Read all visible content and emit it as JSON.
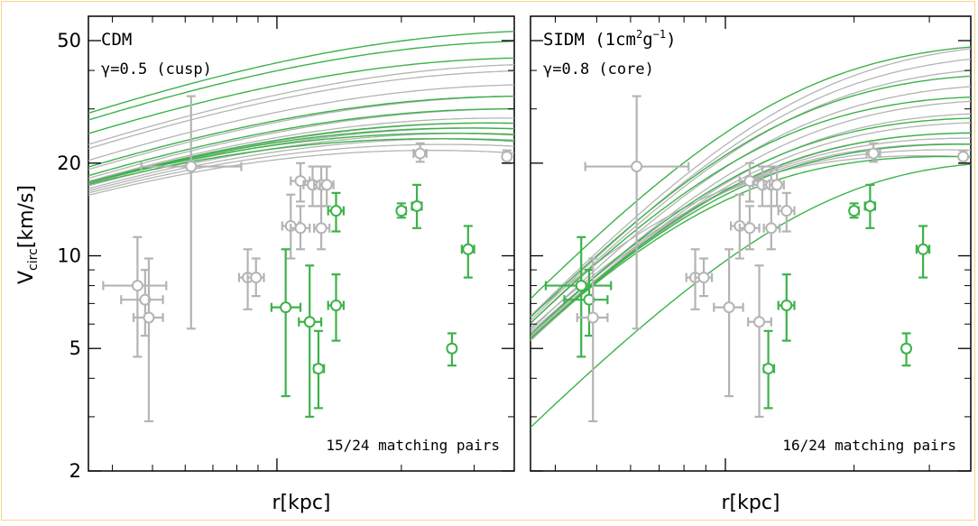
{
  "colors": {
    "gray": "#b4b4b4",
    "green": "#3cb24a",
    "frame": "#f5d58a"
  },
  "axes": {
    "xlabel": "r[kpc]",
    "ylabel": "V_circ[km/s]",
    "ytick_labels": [
      "2",
      "5",
      "10",
      "20",
      "50"
    ],
    "yticks": [
      2,
      5,
      10,
      20,
      50
    ],
    "ylim": [
      2,
      60
    ],
    "xlim": [
      0.35,
      3.75
    ],
    "xscale": "log",
    "yscale": "log"
  },
  "chart_data": [
    {
      "type": "scatter",
      "title": "CDM",
      "subtitle": "γ=0.5 (cusp)",
      "annotation": "15/24 matching pairs",
      "points": [
        {
          "x": 0.46,
          "y": 8.0,
          "xerr": [
            0.38,
            0.54
          ],
          "yerr": [
            4.7,
            11.5
          ],
          "group": "gray"
        },
        {
          "x": 0.48,
          "y": 7.2,
          "xerr": [
            0.42,
            0.53
          ],
          "yerr": [
            5.5,
            9.0
          ],
          "group": "gray"
        },
        {
          "x": 0.49,
          "y": 6.3,
          "xerr": [
            0.45,
            0.53
          ],
          "yerr": [
            2.9,
            9.8
          ],
          "group": "gray"
        },
        {
          "x": 0.62,
          "y": 19.5,
          "xerr": [
            0.47,
            0.82
          ],
          "yerr": [
            5.8,
            33.0
          ],
          "group": "gray"
        },
        {
          "x": 0.85,
          "y": 8.5,
          "xerr": [
            0.81,
            0.89
          ],
          "yerr": [
            6.7,
            10.5
          ],
          "group": "gray"
        },
        {
          "x": 0.89,
          "y": 8.5,
          "xerr": [
            0.85,
            0.93
          ],
          "yerr": [
            7.4,
            9.8
          ],
          "group": "gray"
        },
        {
          "x": 1.08,
          "y": 12.5,
          "xerr": [
            1.03,
            1.13
          ],
          "yerr": [
            9.8,
            15.8
          ],
          "group": "gray"
        },
        {
          "x": 1.14,
          "y": 17.5,
          "xerr": [
            1.08,
            1.2
          ],
          "yerr": [
            15.0,
            20.0
          ],
          "group": "gray"
        },
        {
          "x": 1.14,
          "y": 12.3,
          "xerr": [
            1.08,
            1.2
          ],
          "yerr": [
            10.5,
            14.5
          ],
          "group": "gray"
        },
        {
          "x": 1.22,
          "y": 17.0,
          "xerr": [
            1.16,
            1.28
          ],
          "yerr": [
            14.5,
            19.5
          ],
          "group": "gray"
        },
        {
          "x": 1.28,
          "y": 17.0,
          "xerr": [
            1.23,
            1.34
          ],
          "yerr": [
            14.5,
            19.5
          ],
          "group": "gray"
        },
        {
          "x": 1.28,
          "y": 12.3,
          "xerr": [
            1.23,
            1.34
          ],
          "yerr": [
            10.5,
            14.5
          ],
          "group": "gray"
        },
        {
          "x": 1.32,
          "y": 17.0,
          "xerr": [
            1.27,
            1.37
          ],
          "yerr": [
            14.5,
            19.5
          ],
          "group": "gray"
        },
        {
          "x": 1.39,
          "y": 14.0,
          "xerr": [
            1.33,
            1.45
          ],
          "yerr": [
            12.0,
            16.0
          ],
          "group": "green"
        },
        {
          "x": 1.05,
          "y": 6.8,
          "xerr": [
            0.97,
            1.14
          ],
          "yerr": [
            3.5,
            10.5
          ],
          "group": "green"
        },
        {
          "x": 1.2,
          "y": 6.1,
          "xerr": [
            1.13,
            1.28
          ],
          "yerr": [
            3.0,
            9.3
          ],
          "group": "green"
        },
        {
          "x": 1.26,
          "y": 4.3,
          "xerr": [
            1.23,
            1.3
          ],
          "yerr": [
            3.2,
            5.7
          ],
          "group": "green"
        },
        {
          "x": 1.39,
          "y": 6.9,
          "xerr": [
            1.33,
            1.45
          ],
          "yerr": [
            5.3,
            8.7
          ],
          "group": "green"
        },
        {
          "x": 2.0,
          "y": 14.0,
          "xerr": [
            1.96,
            2.05
          ],
          "yerr": [
            13.3,
            14.8
          ],
          "group": "green"
        },
        {
          "x": 2.18,
          "y": 14.5,
          "xerr": [
            2.12,
            2.24
          ],
          "yerr": [
            12.3,
            17.0
          ],
          "group": "green"
        },
        {
          "x": 2.22,
          "y": 21.5,
          "xerr": [
            2.14,
            2.3
          ],
          "yerr": [
            20.2,
            23.2
          ],
          "group": "gray"
        },
        {
          "x": 2.65,
          "y": 5.0,
          "xerr": [
            2.6,
            2.7
          ],
          "yerr": [
            4.4,
            5.6
          ],
          "group": "green"
        },
        {
          "x": 2.9,
          "y": 10.5,
          "xerr": [
            2.8,
            3.0
          ],
          "yerr": [
            8.5,
            12.5
          ],
          "group": "green"
        },
        {
          "x": 3.6,
          "y": 21.0,
          "xerr": [
            3.55,
            3.65
          ],
          "yerr": [
            20.0,
            22.0
          ],
          "group": "gray"
        }
      ],
      "curves": [
        {
          "g": "gray",
          "vmax": 22,
          "rmax": 2.35
        },
        {
          "g": "gray",
          "vmax": 23,
          "rmax": 2.55
        },
        {
          "g": "gray",
          "vmax": 24,
          "rmax": 2.75
        },
        {
          "g": "gray",
          "vmax": 25,
          "rmax": 2.95
        },
        {
          "g": "gray",
          "vmax": 26,
          "rmax": 3.1
        },
        {
          "g": "gray",
          "vmax": 27,
          "rmax": 3.3
        },
        {
          "g": "gray",
          "vmax": 28,
          "rmax": 3.45
        },
        {
          "g": "gray",
          "vmax": 30,
          "rmax": 3.9
        },
        {
          "g": "gray",
          "vmax": 33,
          "rmax": 4.2
        },
        {
          "g": "gray",
          "vmax": 36,
          "rmax": 4.4
        },
        {
          "g": "gray",
          "vmax": 40,
          "rmax": 4.6
        },
        {
          "g": "gray",
          "vmax": 42,
          "rmax": 4.8
        },
        {
          "g": "green",
          "vmax": 24,
          "rmax": 2.4
        },
        {
          "g": "green",
          "vmax": 25,
          "rmax": 2.6
        },
        {
          "g": "green",
          "vmax": 26,
          "rmax": 2.9
        },
        {
          "g": "green",
          "vmax": 27,
          "rmax": 3.2
        },
        {
          "g": "green",
          "vmax": 30,
          "rmax": 3.7
        },
        {
          "g": "green",
          "vmax": 33,
          "rmax": 4.0
        },
        {
          "g": "green",
          "vmax": 44,
          "rmax": 4.4
        },
        {
          "g": "green",
          "vmax": 50,
          "rmax": 4.7
        },
        {
          "g": "green",
          "vmax": 54,
          "rmax": 5.0
        }
      ]
    },
    {
      "type": "scatter",
      "title": "SIDM (1cm²g⁻¹)",
      "subtitle": "γ=0.8 (core)",
      "annotation": "16/24 matching pairs",
      "points": [
        {
          "x": 0.46,
          "y": 8.0,
          "xerr": [
            0.38,
            0.54
          ],
          "yerr": [
            4.7,
            11.5
          ],
          "group": "green"
        },
        {
          "x": 0.48,
          "y": 7.2,
          "xerr": [
            0.42,
            0.53
          ],
          "yerr": [
            5.5,
            9.0
          ],
          "group": "green"
        },
        {
          "x": 0.49,
          "y": 6.3,
          "xerr": [
            0.45,
            0.53
          ],
          "yerr": [
            2.9,
            9.8
          ],
          "group": "gray"
        },
        {
          "x": 0.62,
          "y": 19.5,
          "xerr": [
            0.47,
            0.82
          ],
          "yerr": [
            5.8,
            33.0
          ],
          "group": "gray"
        },
        {
          "x": 0.85,
          "y": 8.5,
          "xerr": [
            0.81,
            0.89
          ],
          "yerr": [
            6.7,
            10.5
          ],
          "group": "gray"
        },
        {
          "x": 0.89,
          "y": 8.5,
          "xerr": [
            0.85,
            0.93
          ],
          "yerr": [
            7.4,
            9.8
          ],
          "group": "gray"
        },
        {
          "x": 1.02,
          "y": 6.8,
          "xerr": [
            0.94,
            1.1
          ],
          "yerr": [
            3.5,
            10.5
          ],
          "group": "gray"
        },
        {
          "x": 1.08,
          "y": 12.5,
          "xerr": [
            1.03,
            1.13
          ],
          "yerr": [
            9.8,
            15.8
          ],
          "group": "gray"
        },
        {
          "x": 1.14,
          "y": 17.5,
          "xerr": [
            1.08,
            1.2
          ],
          "yerr": [
            15.0,
            20.0
          ],
          "group": "gray"
        },
        {
          "x": 1.14,
          "y": 12.3,
          "xerr": [
            1.08,
            1.2
          ],
          "yerr": [
            10.5,
            14.5
          ],
          "group": "gray"
        },
        {
          "x": 1.2,
          "y": 6.1,
          "xerr": [
            1.13,
            1.28
          ],
          "yerr": [
            3.0,
            9.3
          ],
          "group": "gray"
        },
        {
          "x": 1.22,
          "y": 17.0,
          "xerr": [
            1.16,
            1.28
          ],
          "yerr": [
            14.5,
            19.5
          ],
          "group": "gray"
        },
        {
          "x": 1.28,
          "y": 17.0,
          "xerr": [
            1.23,
            1.34
          ],
          "yerr": [
            14.5,
            19.5
          ],
          "group": "gray"
        },
        {
          "x": 1.28,
          "y": 12.3,
          "xerr": [
            1.23,
            1.34
          ],
          "yerr": [
            10.5,
            14.5
          ],
          "group": "gray"
        },
        {
          "x": 1.32,
          "y": 17.0,
          "xerr": [
            1.27,
            1.37
          ],
          "yerr": [
            14.5,
            19.5
          ],
          "group": "gray"
        },
        {
          "x": 1.39,
          "y": 14.0,
          "xerr": [
            1.33,
            1.45
          ],
          "yerr": [
            12.0,
            16.0
          ],
          "group": "gray"
        },
        {
          "x": 1.26,
          "y": 4.3,
          "xerr": [
            1.23,
            1.3
          ],
          "yerr": [
            3.2,
            5.7
          ],
          "group": "green"
        },
        {
          "x": 1.39,
          "y": 6.9,
          "xerr": [
            1.33,
            1.45
          ],
          "yerr": [
            5.3,
            8.7
          ],
          "group": "green"
        },
        {
          "x": 2.0,
          "y": 14.0,
          "xerr": [
            1.96,
            2.05
          ],
          "yerr": [
            13.3,
            14.8
          ],
          "group": "green"
        },
        {
          "x": 2.18,
          "y": 14.5,
          "xerr": [
            2.12,
            2.24
          ],
          "yerr": [
            12.3,
            17.0
          ],
          "group": "green"
        },
        {
          "x": 2.22,
          "y": 21.5,
          "xerr": [
            2.14,
            2.3
          ],
          "yerr": [
            20.2,
            23.2
          ],
          "group": "gray"
        },
        {
          "x": 2.65,
          "y": 5.0,
          "xerr": [
            2.6,
            2.7
          ],
          "yerr": [
            4.4,
            5.6
          ],
          "group": "green"
        },
        {
          "x": 2.9,
          "y": 10.5,
          "xerr": [
            2.8,
            3.0
          ],
          "yerr": [
            8.5,
            12.5
          ],
          "group": "green"
        },
        {
          "x": 3.6,
          "y": 21.0,
          "xerr": [
            3.55,
            3.65
          ],
          "yerr": [
            20.0,
            22.0
          ],
          "group": "gray"
        }
      ],
      "curves": [
        {
          "g": "gray",
          "vmax": 22,
          "rmax": 2.05,
          "rs": 0.85
        },
        {
          "g": "gray",
          "vmax": 23,
          "rmax": 2.3,
          "rs": 0.95
        },
        {
          "g": "gray",
          "vmax": 24,
          "rmax": 2.5,
          "rs": 1.0
        },
        {
          "g": "gray",
          "vmax": 25,
          "rmax": 2.7,
          "rs": 1.05
        },
        {
          "g": "gray",
          "vmax": 26,
          "rmax": 2.9,
          "rs": 1.1
        },
        {
          "g": "gray",
          "vmax": 28,
          "rmax": 3.2,
          "rs": 1.15
        },
        {
          "g": "gray",
          "vmax": 30,
          "rmax": 3.4,
          "rs": 1.2
        },
        {
          "g": "gray",
          "vmax": 33,
          "rmax": 3.7,
          "rs": 1.25
        },
        {
          "g": "gray",
          "vmax": 37,
          "rmax": 4.0,
          "rs": 1.3
        },
        {
          "g": "gray",
          "vmax": 42,
          "rmax": 4.4,
          "rs": 1.35
        },
        {
          "g": "gray",
          "vmax": 46,
          "rmax": 4.8,
          "rs": 1.4
        },
        {
          "g": "gray",
          "vmax": 50,
          "rmax": 5.0,
          "rs": 1.45
        },
        {
          "g": "green",
          "vmax": 22,
          "rmax": 2.2,
          "rs": 1.0
        },
        {
          "g": "green",
          "vmax": 24,
          "rmax": 2.5,
          "rs": 1.05
        },
        {
          "g": "green",
          "vmax": 26,
          "rmax": 2.8,
          "rs": 1.1
        },
        {
          "g": "green",
          "vmax": 29,
          "rmax": 3.1,
          "rs": 1.15
        },
        {
          "g": "green",
          "vmax": 34,
          "rmax": 3.4,
          "rs": 1.2
        },
        {
          "g": "green",
          "vmax": 40,
          "rmax": 3.8,
          "rs": 1.3
        },
        {
          "g": "green",
          "vmax": 50,
          "rmax": 4.3,
          "rs": 1.35
        },
        {
          "g": "green",
          "vmax": 22,
          "rmax": 2.6,
          "rs": 1.9
        }
      ]
    }
  ]
}
